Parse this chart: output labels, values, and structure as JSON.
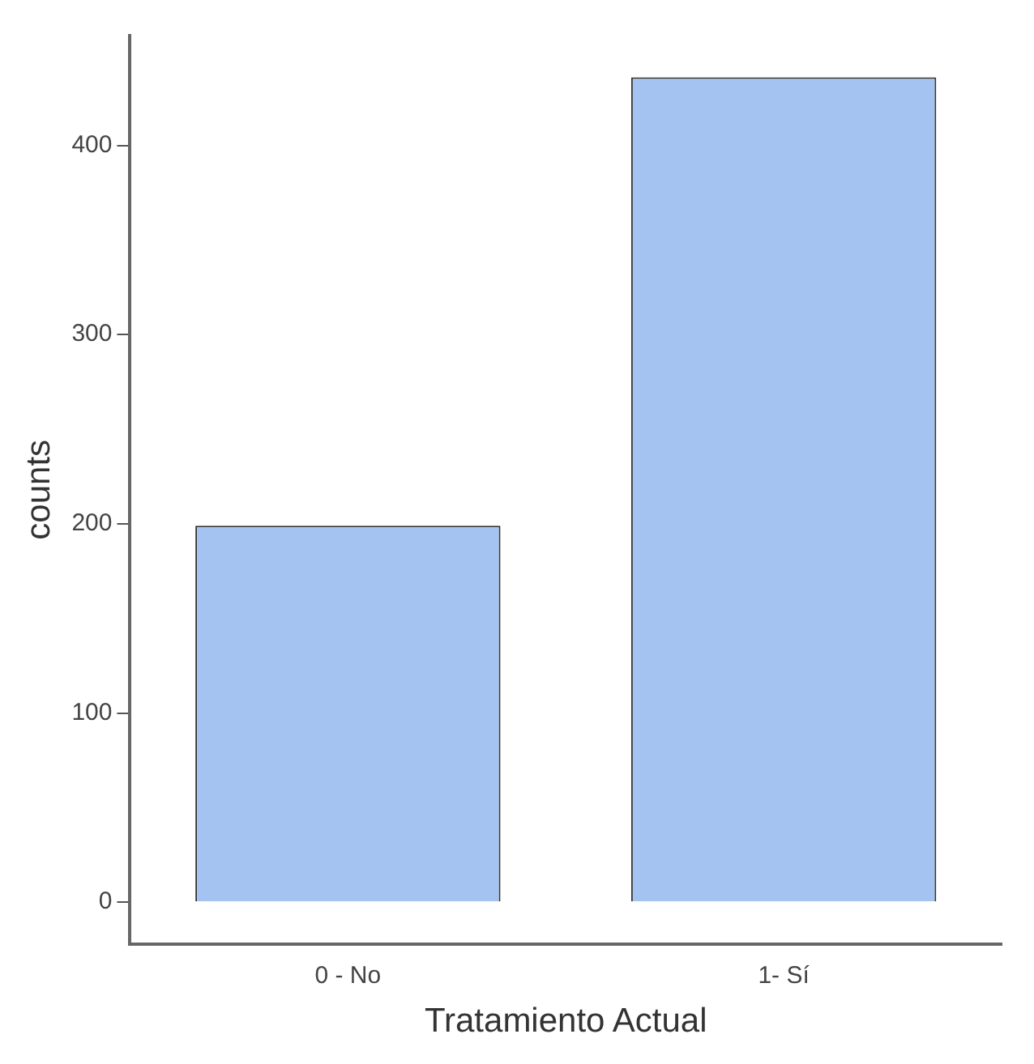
{
  "chart_data": {
    "type": "bar",
    "xlabel": "Tratamiento Actual",
    "ylabel": "counts",
    "categories": [
      "0 - No",
      "1- Sí"
    ],
    "values": [
      199,
      436
    ],
    "color": "#a4c3f1",
    "ylim": [
      -22,
      458
    ],
    "yticks": [
      0,
      100,
      200,
      300,
      400
    ],
    "grid": false,
    "legend": false
  }
}
